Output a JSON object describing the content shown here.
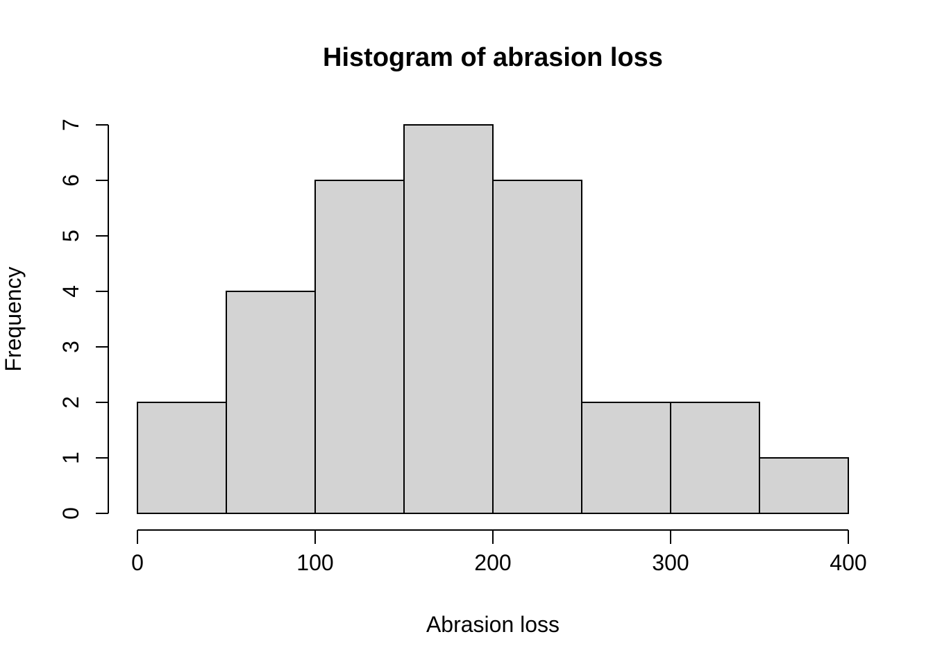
{
  "chart_data": {
    "type": "bar",
    "subtype": "histogram",
    "title": "Histogram of abrasion loss",
    "xlabel": "Abrasion loss",
    "ylabel": "Frequency",
    "bin_edges": [
      0,
      50,
      100,
      150,
      200,
      250,
      300,
      350,
      400
    ],
    "frequencies": [
      2,
      4,
      6,
      7,
      6,
      2,
      2,
      1
    ],
    "x_ticks": [
      0,
      100,
      200,
      300,
      400
    ],
    "y_ticks": [
      0,
      1,
      2,
      3,
      4,
      5,
      6,
      7
    ],
    "xlim": [
      0,
      400
    ],
    "ylim": [
      0,
      7
    ],
    "grid": "off",
    "legend": "none",
    "colors": {
      "bar_fill": "#D3D3D3",
      "bar_stroke": "#000000",
      "axis_stroke": "#000000",
      "text": "#000000",
      "background": "#FFFFFF"
    }
  }
}
